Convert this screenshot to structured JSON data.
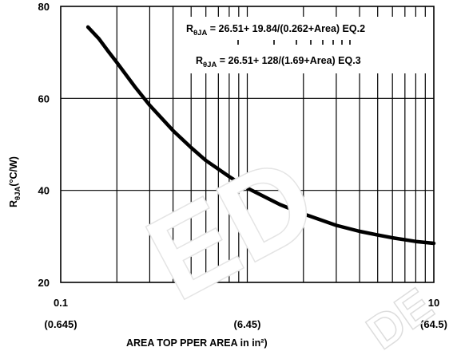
{
  "chart_data": {
    "type": "line",
    "title": "",
    "ylabel_main": "R",
    "ylabel_sub": "θJA",
    "ylabel_unit": "(°C/W)",
    "xlabel": "AREA  TOP  PPER AREA in  in²)",
    "x_scale": "log",
    "xlim": [
      0.1,
      10
    ],
    "ylim": [
      20,
      80
    ],
    "x_ticks": [
      {
        "value": 0.1,
        "label": "0.1",
        "sublabel": "(0.645)"
      },
      {
        "value": 1,
        "label": "",
        "sublabel": "(6.45)"
      },
      {
        "value": 10,
        "label": "10",
        "sublabel": "(64.5)"
      }
    ],
    "y_ticks": [
      20,
      40,
      60,
      80
    ],
    "grid": true,
    "series": [
      {
        "x": [
          0.14,
          0.16,
          0.18,
          0.2,
          0.25,
          0.3,
          0.4,
          0.5,
          0.6,
          0.8,
          1.0,
          1.5,
          2.0,
          3.0,
          4.0,
          5.0,
          6.0,
          8.0,
          10.0
        ],
        "values": [
          75.5,
          73.0,
          70.2,
          67.8,
          62.5,
          58.5,
          53.0,
          49.3,
          46.5,
          43.0,
          40.5,
          36.9,
          34.9,
          32.4,
          31.1,
          30.3,
          29.7,
          28.9,
          28.5
        ]
      }
    ],
    "annotations": [
      {
        "main": "R",
        "sub": "θJA",
        "text": " = 26.51+ 19.84/(0.262+Area) EQ.2"
      },
      {
        "main": "R",
        "sub": "θJA",
        "text": " = 26.51+ 128/(1.69+Area) EQ.3"
      }
    ]
  },
  "watermark": {
    "text": "ED",
    "text2": "DE"
  }
}
